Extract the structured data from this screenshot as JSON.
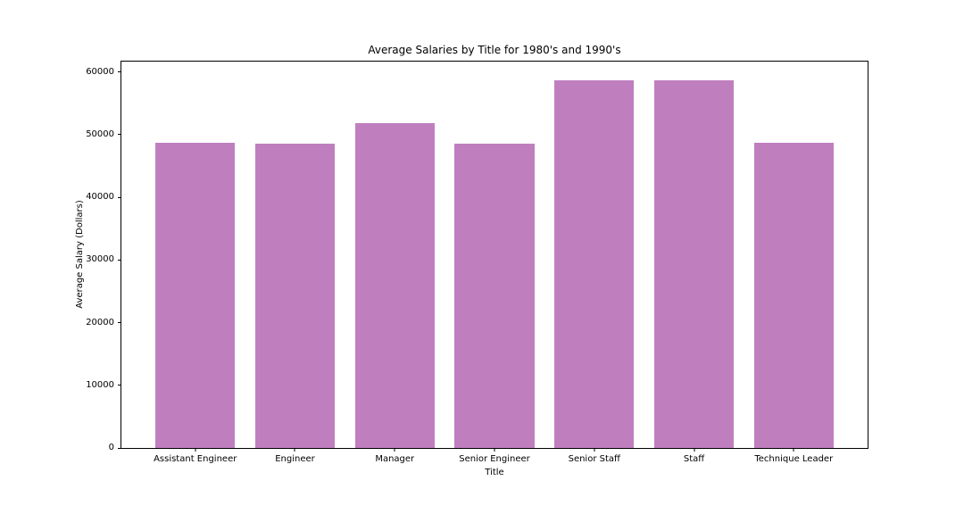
{
  "chart_data": {
    "type": "bar",
    "title": "Average Salaries by Title for 1980's and 1990's",
    "xlabel": "Title",
    "ylabel": "Average Salary (Dollars)",
    "categories": [
      "Assistant Engineer",
      "Engineer",
      "Manager",
      "Senior Engineer",
      "Senior Staff",
      "Staff",
      "Technique Leader"
    ],
    "values": [
      48750,
      48550,
      51850,
      48500,
      58700,
      58700,
      48700
    ],
    "yticks": [
      0,
      10000,
      20000,
      30000,
      40000,
      50000,
      60000
    ],
    "ylim": [
      0,
      61650
    ],
    "bar_width_fraction": 0.8,
    "bar_color": "#bf7fbf",
    "spine_color": "#000000",
    "text_color": "#000000",
    "background": "#ffffff",
    "grid": false,
    "legend_position": "none"
  }
}
